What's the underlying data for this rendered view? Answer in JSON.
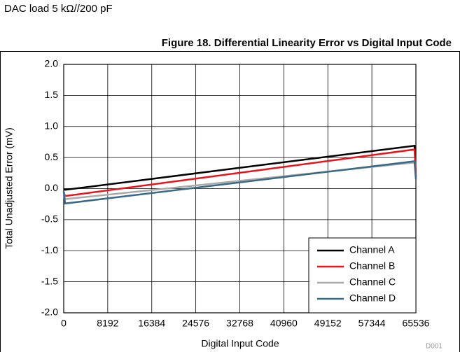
{
  "header": {
    "note": "DAC load 5 kΩ//200 pF"
  },
  "chart_data": {
    "type": "line",
    "title": "Figure 18. Differential Linearity Error vs Digital Input Code",
    "xlabel": "Digital Input Code",
    "ylabel": "Total Unadjusted Error (mV)",
    "annotations": [
      "D001"
    ],
    "x": [
      0,
      256,
      65280,
      65535
    ],
    "series": [
      {
        "name": "Channel A",
        "color": "#000000",
        "values": [
          -0.01,
          -0.02,
          0.69,
          0.2
        ]
      },
      {
        "name": "Channel B",
        "color": "#e8141b",
        "values": [
          -0.05,
          -0.12,
          0.63,
          0.18
        ]
      },
      {
        "name": "Channel C",
        "color": "#aaaaaa",
        "values": [
          -0.05,
          -0.17,
          0.42,
          0.16
        ]
      },
      {
        "name": "Channel D",
        "color": "#3b6a87",
        "values": [
          -0.05,
          -0.24,
          0.44,
          0.15
        ]
      }
    ],
    "xlim": [
      0,
      65536
    ],
    "xticks": [
      0,
      8192,
      16384,
      24576,
      32768,
      40960,
      49152,
      57344,
      65536
    ],
    "ylim": [
      -2,
      2
    ],
    "yticks": [
      {
        "value": 2,
        "label": "2.0"
      },
      1.5,
      {
        "value": 1,
        "label": "1.0"
      },
      0.5,
      {
        "value": 0,
        "label": "0.0"
      },
      -0.5,
      {
        "value": -1,
        "label": "-1.0"
      },
      -1.5,
      {
        "value": -2,
        "label": "-2.0"
      }
    ],
    "grid": true,
    "legend": "lower right"
  }
}
